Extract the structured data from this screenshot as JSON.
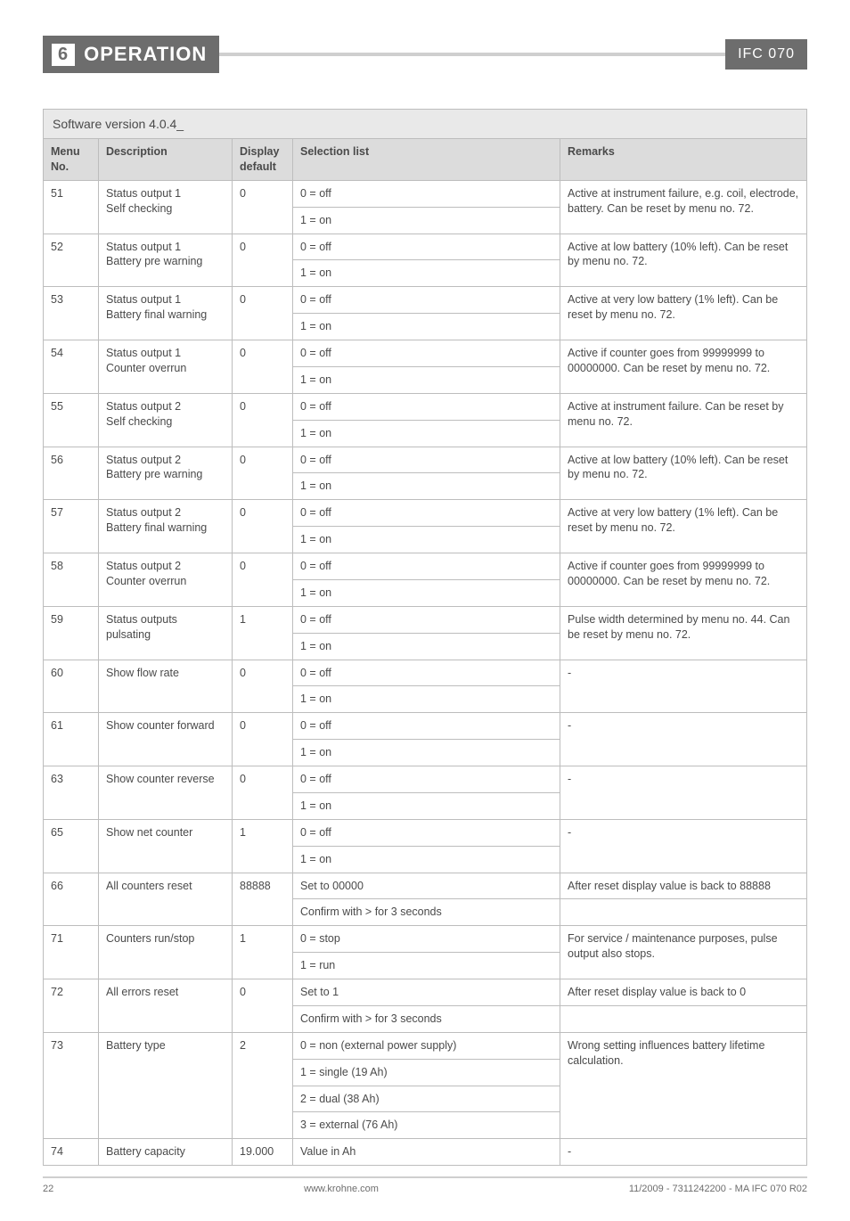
{
  "header": {
    "section_number": "6",
    "section_title": "OPERATION",
    "doc_code": "IFC 070"
  },
  "table": {
    "title": "Software version 4.0.4_",
    "columns": {
      "menu": "Menu No.",
      "desc": "Description",
      "disp": "Display default",
      "sel": "Selection list",
      "rem": "Remarks"
    },
    "rows": [
      {
        "menu": "51",
        "desc": "Status output 1\nSelf checking",
        "disp": "0",
        "sel": [
          "0 = off",
          "1 = on"
        ],
        "rem": "Active at instrument failure, e.g. coil, electrode, battery. Can be reset by menu no. 72."
      },
      {
        "menu": "52",
        "desc": "Status output 1\nBattery pre warning",
        "disp": "0",
        "sel": [
          "0 = off",
          "1 = on"
        ],
        "rem": "Active at low battery (10% left). Can be reset by menu no. 72."
      },
      {
        "menu": "53",
        "desc": "Status output 1\nBattery final warning",
        "disp": "0",
        "sel": [
          "0 = off",
          "1 = on"
        ],
        "rem": "Active at  very low battery (1% left). Can be reset by menu no. 72."
      },
      {
        "menu": "54",
        "desc": "Status output 1\nCounter overrun",
        "disp": "0",
        "sel": [
          "0 = off",
          "1 = on"
        ],
        "rem": "Active if counter goes from 99999999 to 00000000. Can be reset by menu no. 72."
      },
      {
        "menu": "55",
        "desc": "Status output 2\nSelf checking",
        "disp": "0",
        "sel": [
          "0 = off",
          "1 = on"
        ],
        "rem": "Active at instrument failure. Can be reset by menu no. 72."
      },
      {
        "menu": "56",
        "desc": "Status output 2\nBattery pre warning",
        "disp": "0",
        "sel": [
          "0 = off",
          "1 = on"
        ],
        "rem": "Active at low battery (10% left). Can be reset by menu no. 72."
      },
      {
        "menu": "57",
        "desc": "Status output 2\nBattery final warning",
        "disp": "0",
        "sel": [
          "0 = off",
          "1 = on"
        ],
        "rem": "Active at  very low battery (1% left). Can be reset by menu no. 72."
      },
      {
        "menu": "58",
        "desc": "Status output 2\nCounter overrun",
        "disp": "0",
        "sel": [
          "0 = off",
          "1 = on"
        ],
        "rem": "Active if counter goes from 99999999 to 00000000. Can be reset by menu no. 72."
      },
      {
        "menu": "59",
        "desc": "Status outputs pulsating",
        "disp": "1",
        "sel": [
          "0 = off",
          "1 = on"
        ],
        "rem": "Pulse width determined by menu no. 44. Can be reset by menu no. 72."
      },
      {
        "menu": "60",
        "desc": "Show flow rate",
        "disp": "0",
        "sel": [
          "0 = off",
          "1 = on"
        ],
        "rem": "-"
      },
      {
        "menu": "61",
        "desc": "Show counter forward",
        "disp": "0",
        "sel": [
          "0 = off",
          "1 = on"
        ],
        "rem": "-"
      },
      {
        "menu": "63",
        "desc": "Show counter reverse",
        "disp": "0",
        "sel": [
          "0 = off",
          "1 = on"
        ],
        "rem": "-"
      },
      {
        "menu": "65",
        "desc": "Show net counter",
        "disp": "1",
        "sel": [
          "0 = off",
          "1 = on"
        ],
        "rem": "-"
      },
      {
        "menu": "66",
        "desc": "All counters reset",
        "disp": "88888",
        "sel": [
          "Set to 00000",
          "Confirm with   >   for 3 seconds"
        ],
        "rem": [
          "After reset display value is back to 88888",
          ""
        ]
      },
      {
        "menu": "71",
        "desc": "Counters run/stop",
        "disp": "1",
        "sel": [
          "0 = stop",
          "1 = run"
        ],
        "rem": "For service / maintenance purposes, pulse output also stops."
      },
      {
        "menu": "72",
        "desc": "All errors reset",
        "disp": "0",
        "sel": [
          "Set to 1",
          "Confirm with   >   for 3 seconds"
        ],
        "rem": [
          "After reset display value is back to 0",
          ""
        ]
      },
      {
        "menu": "73",
        "desc": "Battery type",
        "disp": "2",
        "sel": [
          "0 = non (external power supply)",
          "1 = single (19 Ah)",
          "2 = dual (38 Ah)",
          "3 = external (76 Ah)"
        ],
        "rem": "Wrong setting influences battery lifetime calculation."
      },
      {
        "menu": "74",
        "desc": "Battery capacity",
        "disp": "19.000",
        "sel": [
          "Value in Ah"
        ],
        "rem": "-"
      }
    ]
  },
  "footer": {
    "page": "22",
    "site": "www.krohne.com",
    "ref": "11/2009 - 7311242200 - MA IFC 070 R02"
  }
}
